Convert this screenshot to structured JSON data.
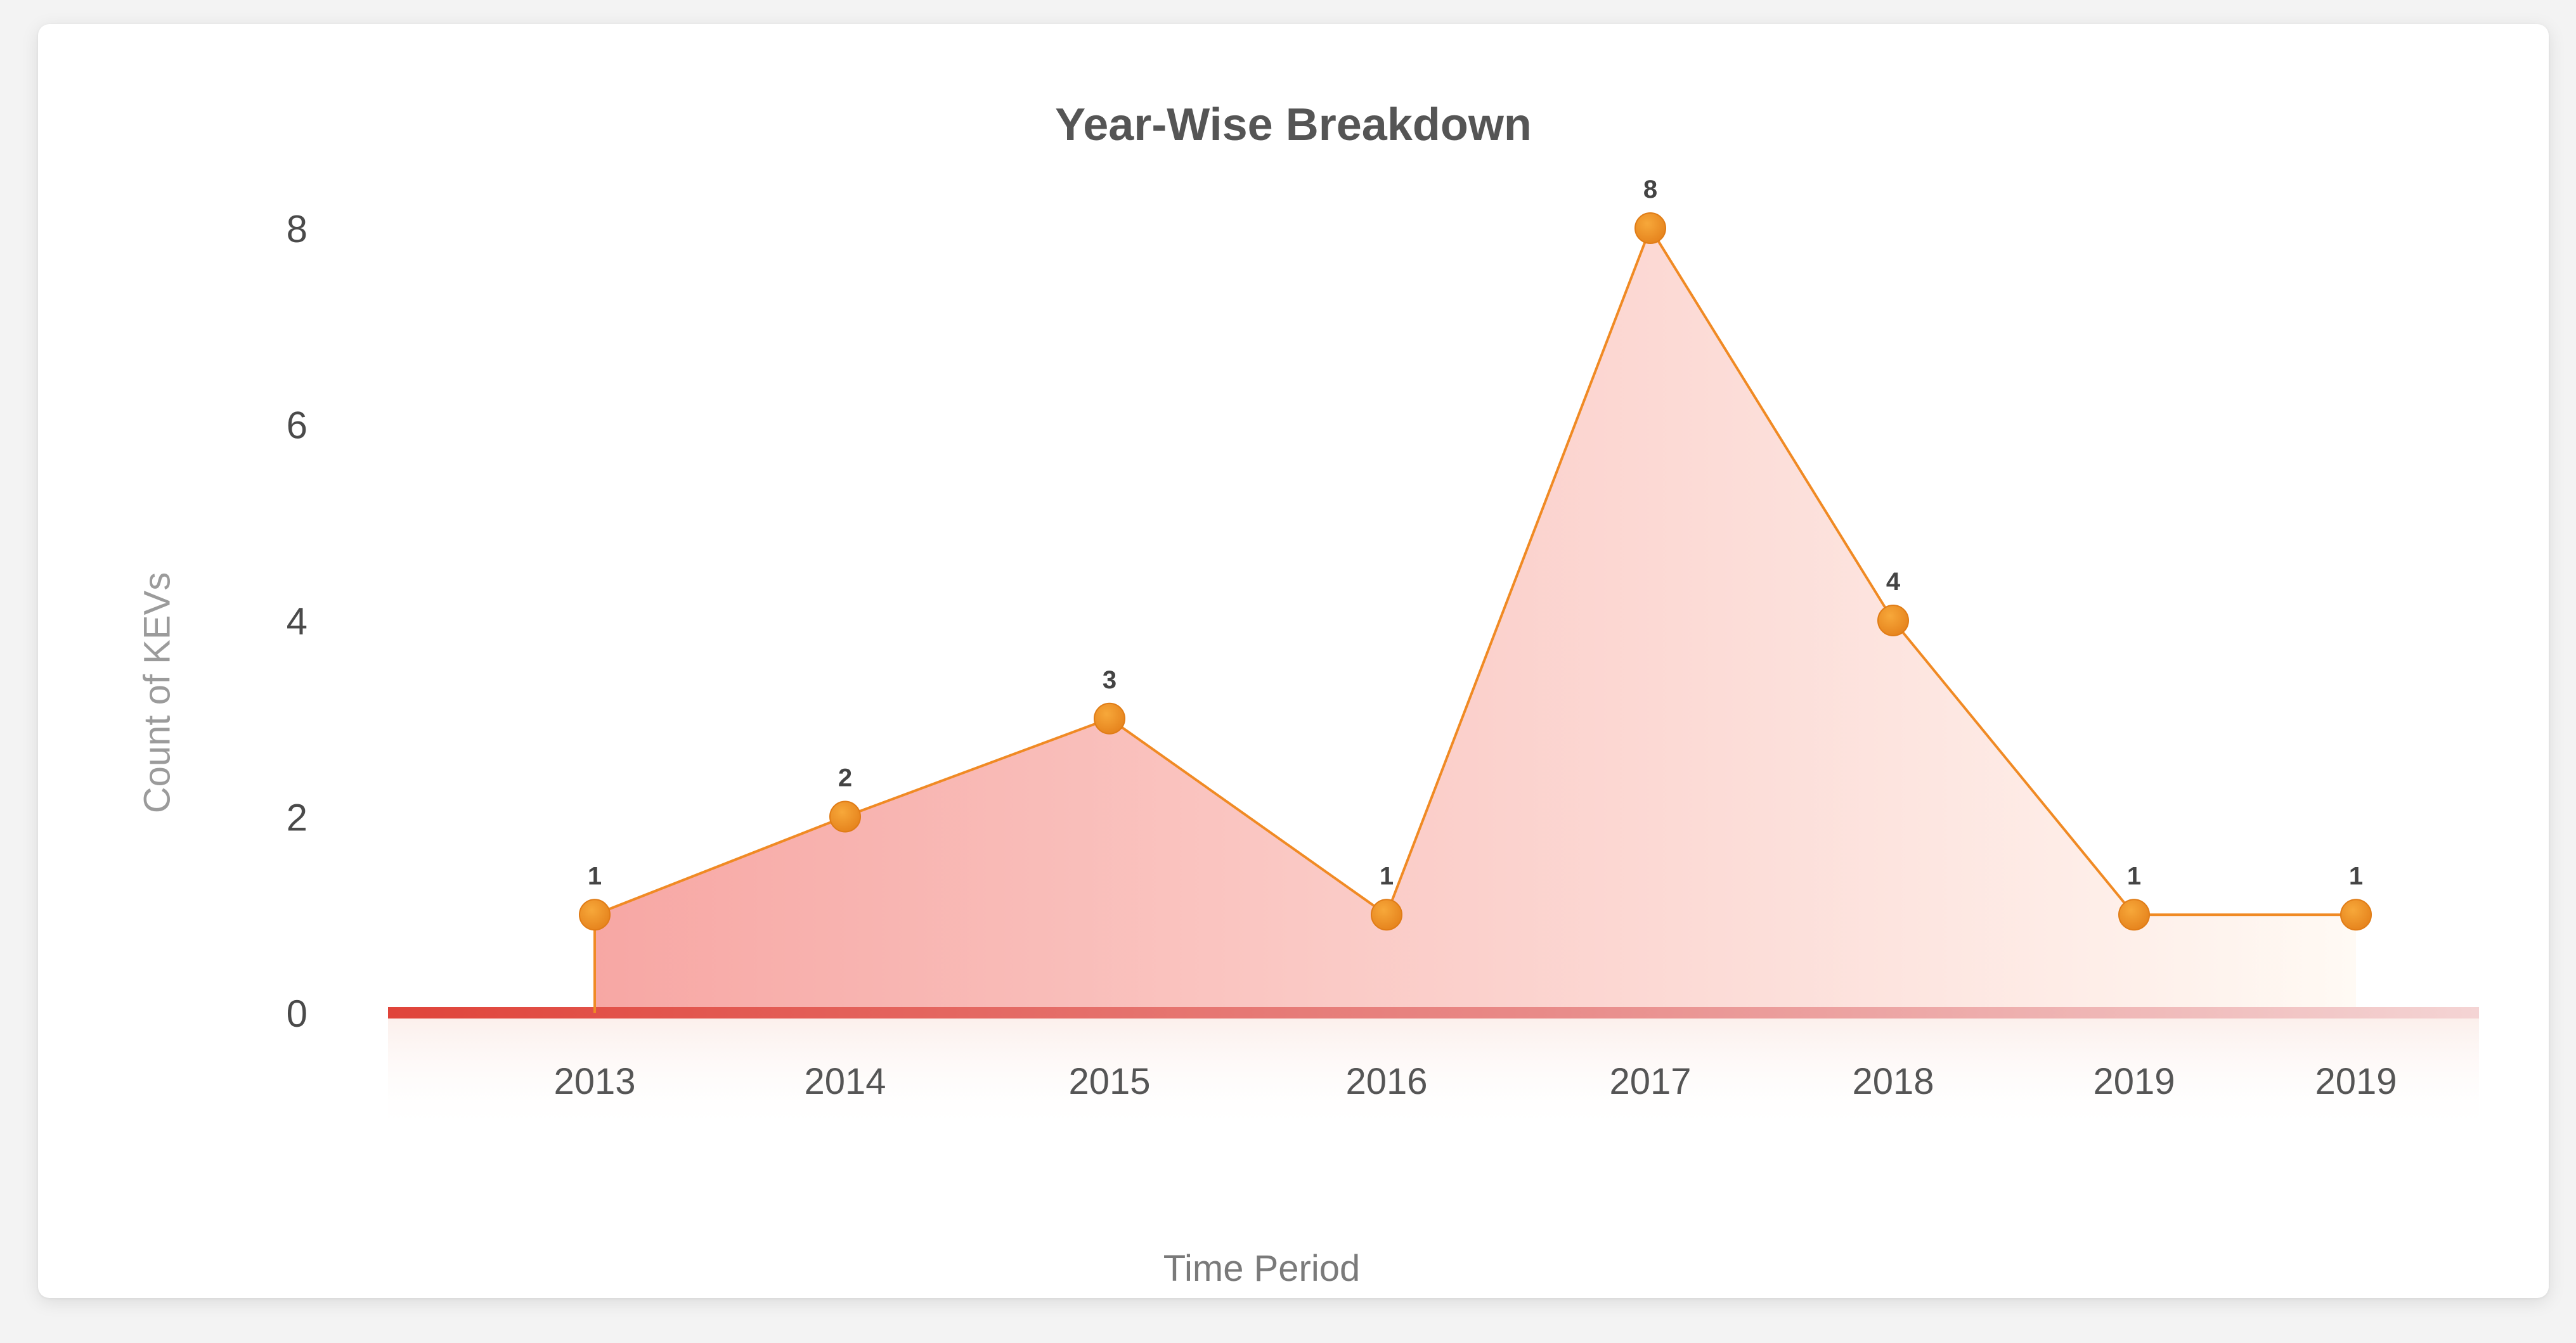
{
  "chart_data": {
    "type": "area",
    "title": "Year-Wise Breakdown",
    "xlabel": "Time Period",
    "ylabel": "Count of KEVs",
    "categories": [
      "2013",
      "2014",
      "2015",
      "2016",
      "2017",
      "2018",
      "2019",
      "2019"
    ],
    "series": [
      {
        "values": [
          1,
          2,
          3,
          1,
          8,
          4,
          1,
          1
        ]
      }
    ],
    "data_labels": [
      "1",
      "2",
      "3",
      "1",
      "8",
      "4",
      "1",
      "1"
    ],
    "yticks": [
      "0",
      "2",
      "4",
      "6",
      "8"
    ],
    "ylim": [
      0,
      8
    ],
    "grid": true,
    "legend": "none",
    "colors": {
      "line": "#f08a24",
      "marker": "#f29424",
      "fill_start": "#f7a7a4",
      "fill_end": "#fffaf4",
      "baseline": "#e04a3c",
      "grid": "#f7c6c2"
    }
  }
}
